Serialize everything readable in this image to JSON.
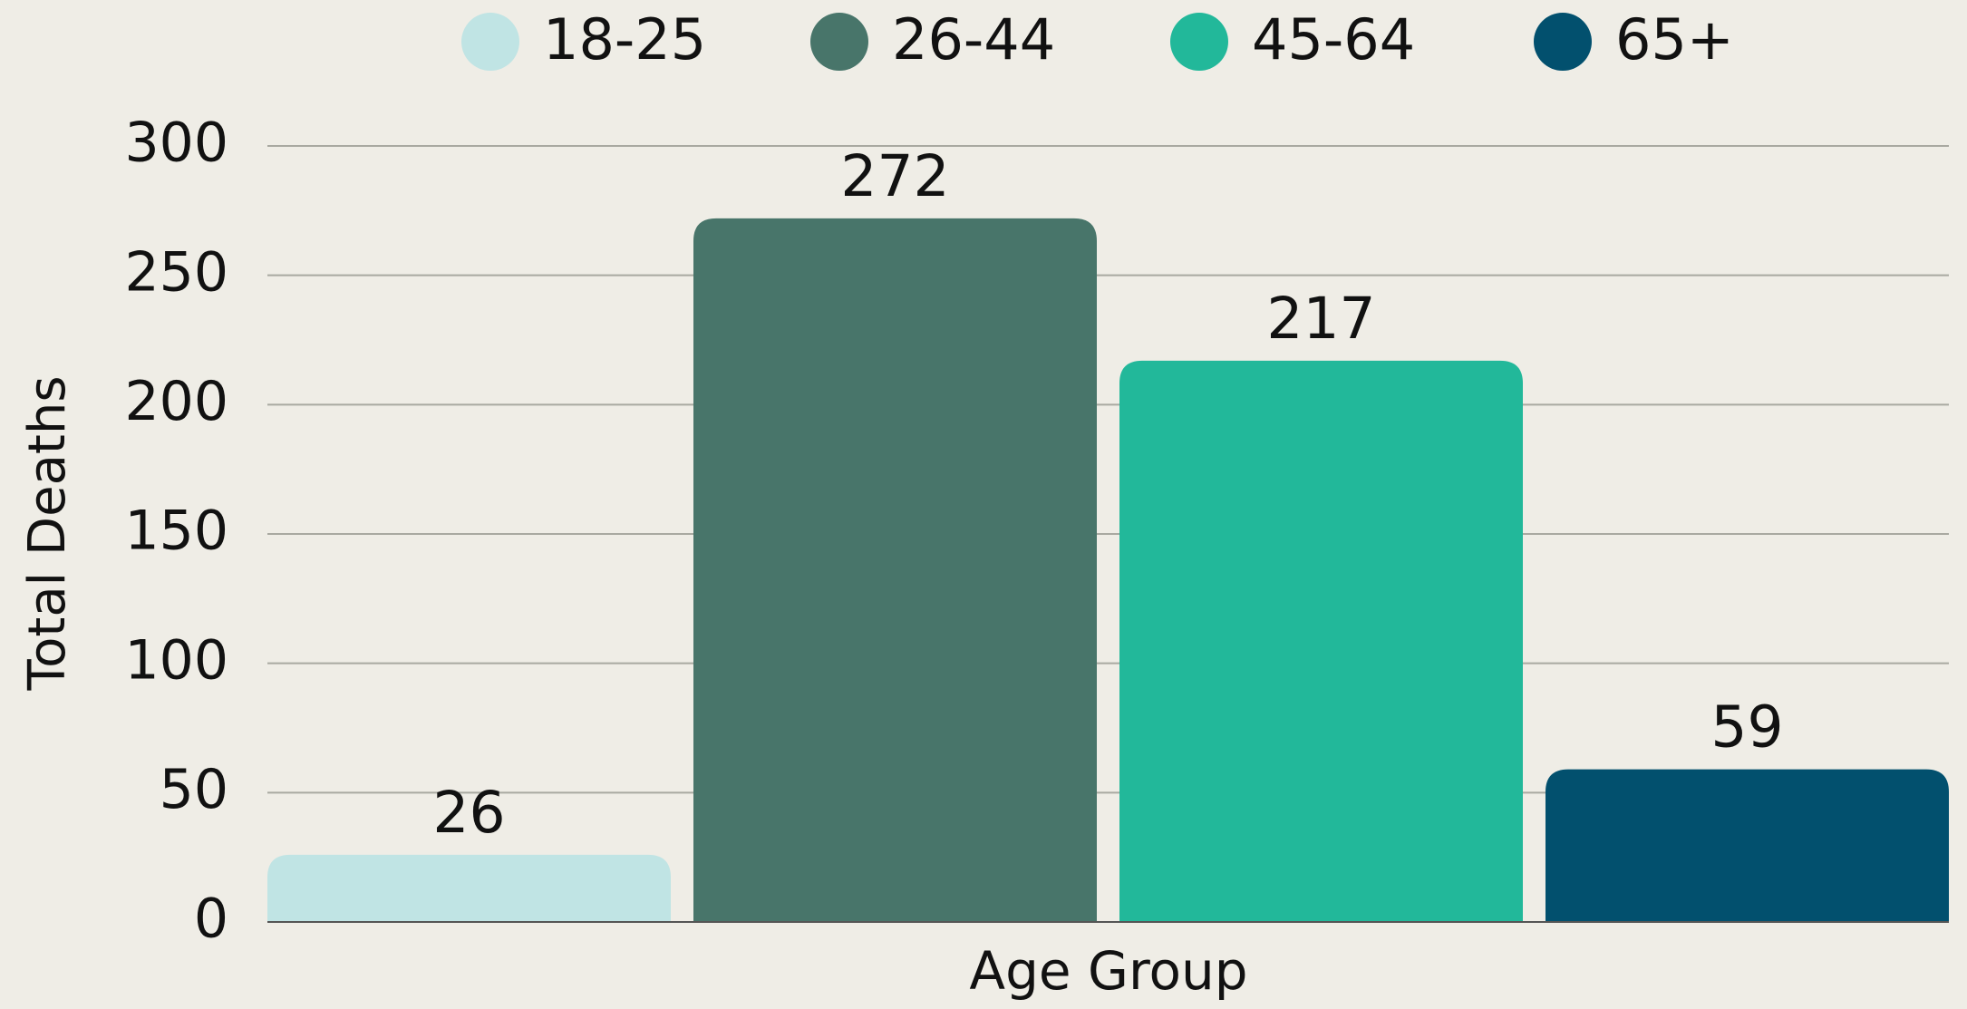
{
  "chart_data": {
    "type": "bar",
    "categories": [
      null
    ],
    "series": [
      {
        "name": "18-25",
        "color": "#c0e4e4",
        "values": [
          26
        ]
      },
      {
        "name": "26-44",
        "color": "#48756a",
        "values": [
          272
        ]
      },
      {
        "name": "45-64",
        "color": "#22b89a",
        "values": [
          217
        ]
      },
      {
        "name": "65+",
        "color": "#02506e",
        "values": [
          59
        ]
      }
    ],
    "xlabel": "Age Group",
    "ylabel": "Total Deaths",
    "ylim": [
      0,
      300
    ],
    "yticks": [
      0,
      50,
      100,
      150,
      200,
      250,
      300
    ],
    "grid": true,
    "legend": "top"
  }
}
